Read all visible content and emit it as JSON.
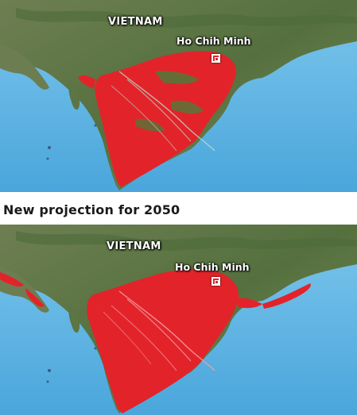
{
  "heading": "New projection for 2050",
  "labels": {
    "country": "VIETNAM",
    "city": "Ho Chih Minh"
  },
  "colors": {
    "sea": "#62b8e6",
    "land": "#5f7a46",
    "flood": "#e3232a"
  },
  "icons": {
    "city_marker": "square-target-icon"
  }
}
